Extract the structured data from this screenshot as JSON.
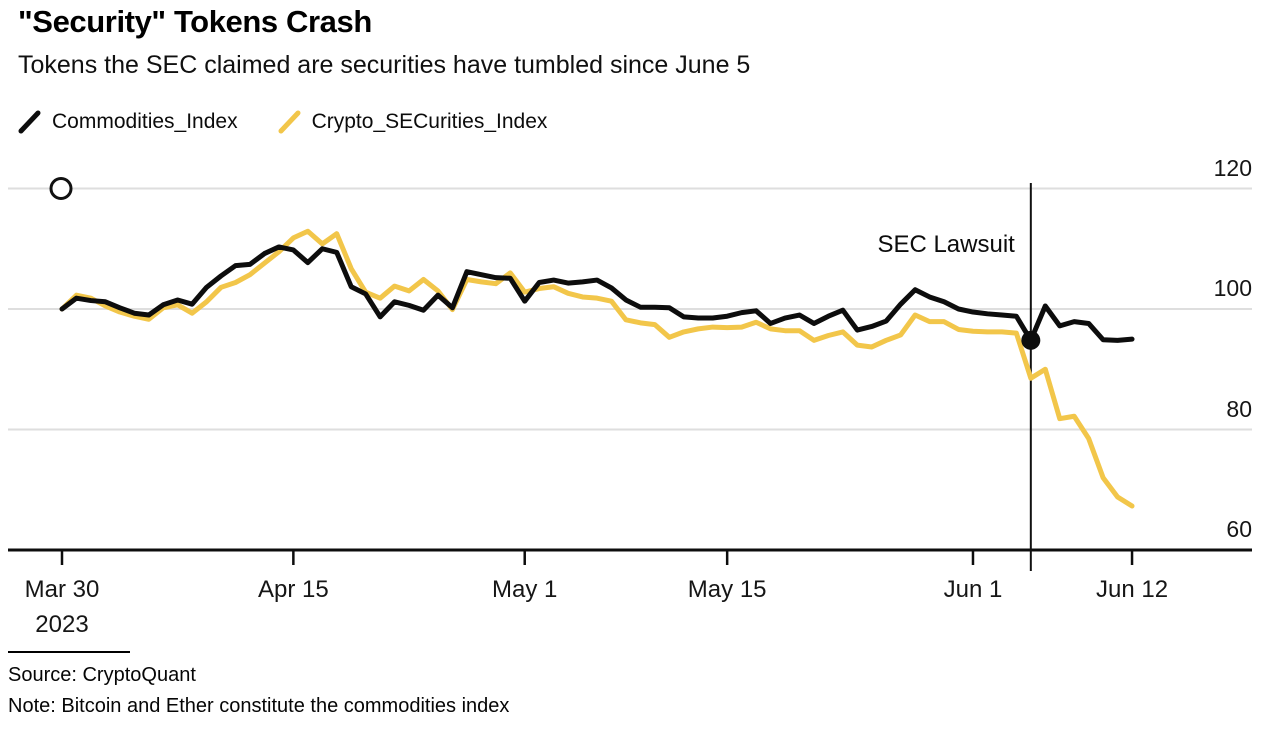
{
  "header": {
    "title": "\"Security\" Tokens Crash",
    "subtitle": "Tokens the SEC claimed are securities have tumbled since June 5"
  },
  "legend": [
    {
      "label": "Commodities_Index",
      "color": "#0d0d0d"
    },
    {
      "label": "Crypto_SECurities_Index",
      "color": "#f2c64a"
    }
  ],
  "footer": {
    "source": "Source: CryptoQuant",
    "note": "Note: Bitcoin and Ether constitute the commodities index"
  },
  "chart_data": {
    "type": "line",
    "title": "\"Security\" Tokens Crash",
    "subtitle": "Tokens the SEC claimed are securities have tumbled since June 5",
    "grid": "horizontal",
    "legend_position": "top-left",
    "ylim": [
      60,
      122
    ],
    "y_ticks": [
      120,
      100,
      80,
      60
    ],
    "x_ticks": [
      {
        "label": "Mar 30",
        "sub": "2023",
        "day": 0
      },
      {
        "label": "Apr 15",
        "day": 16
      },
      {
        "label": "May 1",
        "day": 32
      },
      {
        "label": "May 15",
        "day": 46
      },
      {
        "label": "Jun 1",
        "day": 63
      },
      {
        "label": "Jun 12",
        "day": 74
      }
    ],
    "dates": [
      "Mar 30",
      "Mar 31",
      "Apr 1",
      "Apr 2",
      "Apr 3",
      "Apr 4",
      "Apr 5",
      "Apr 6",
      "Apr 7",
      "Apr 8",
      "Apr 9",
      "Apr 10",
      "Apr 11",
      "Apr 12",
      "Apr 13",
      "Apr 14",
      "Apr 15",
      "Apr 16",
      "Apr 17",
      "Apr 18",
      "Apr 19",
      "Apr 20",
      "Apr 21",
      "Apr 22",
      "Apr 23",
      "Apr 24",
      "Apr 25",
      "Apr 26",
      "Apr 27",
      "Apr 28",
      "Apr 29",
      "Apr 30",
      "May 1",
      "May 2",
      "May 3",
      "May 4",
      "May 5",
      "May 6",
      "May 7",
      "May 8",
      "May 9",
      "May 10",
      "May 11",
      "May 12",
      "May 13",
      "May 14",
      "May 15",
      "May 16",
      "May 17",
      "May 18",
      "May 19",
      "May 20",
      "May 21",
      "May 22",
      "May 23",
      "May 24",
      "May 25",
      "May 26",
      "May 27",
      "May 28",
      "May 29",
      "May 30",
      "May 31",
      "Jun 1",
      "Jun 2",
      "Jun 3",
      "Jun 4",
      "Jun 5",
      "Jun 6",
      "Jun 7",
      "Jun 8",
      "Jun 9",
      "Jun 10",
      "Jun 11",
      "Jun 12"
    ],
    "series": [
      {
        "name": "Commodities_Index",
        "color": "#0d0d0d",
        "values": [
          100,
          101.8,
          101.4,
          101.2,
          100.2,
          99.3,
          99,
          100.7,
          101.5,
          100.8,
          103.6,
          105.5,
          107.2,
          107.4,
          109.2,
          110.3,
          109.8,
          107.7,
          110,
          109.4,
          103.7,
          102.5,
          98.7,
          101.2,
          100.6,
          99.8,
          102.3,
          100.2,
          106.2,
          105.7,
          105.2,
          105.1,
          101.3,
          104.4,
          104.8,
          104.3,
          104.5,
          104.8,
          103.5,
          101.5,
          100.3,
          100.3,
          100.2,
          98.7,
          98.5,
          98.5,
          98.8,
          99.4,
          99.7,
          97.6,
          98.5,
          99,
          97.6,
          98.8,
          99.8,
          96.5,
          97.1,
          98,
          100.8,
          103.2,
          102,
          101.2,
          100,
          99.5,
          99.2,
          99,
          98.8,
          94.8,
          100.5,
          97.2,
          97.9,
          97.6,
          94.9,
          94.8,
          95
        ]
      },
      {
        "name": "Crypto_SECurities_Index",
        "color": "#f2c64a",
        "values": [
          100,
          102.3,
          101.8,
          100.5,
          99.5,
          98.8,
          98.3,
          100.2,
          100.7,
          99.3,
          101.2,
          103.6,
          104.4,
          105.7,
          107.6,
          109.5,
          111.8,
          112.9,
          110.8,
          112.5,
          106.7,
          102.8,
          101.8,
          103.8,
          103,
          104.9,
          103,
          99.9,
          104.9,
          104.5,
          104.2,
          106,
          102.8,
          103.4,
          103.7,
          102.6,
          102,
          101.8,
          101.3,
          98.2,
          97.7,
          97.4,
          95.3,
          96.2,
          96.7,
          97,
          96.9,
          97,
          97.8,
          96.7,
          96.4,
          96.4,
          94.8,
          95.6,
          96.2,
          94,
          93.7,
          94.8,
          95.7,
          99,
          97.9,
          97.9,
          96.6,
          96.3,
          96.2,
          96.2,
          96,
          88.5,
          90,
          81.8,
          82.2,
          78.5,
          72,
          68.8,
          67.3
        ]
      }
    ],
    "event_line": {
      "label": "SEC Lawsuit",
      "date": "Jun 5",
      "day": 67,
      "color": "#111111"
    },
    "event_marker": {
      "series": "Commodities_Index",
      "date": "Jun 5",
      "day": 67,
      "value": 94.8,
      "style": "filled-dot",
      "color": "#0d0d0d"
    },
    "start_marker": {
      "date": "Mar 30",
      "day": 0,
      "value": 120,
      "style": "open-circle"
    },
    "colors": {
      "grid": "#dedede",
      "axis": "#0d0d0d",
      "tick": "#161616"
    }
  }
}
